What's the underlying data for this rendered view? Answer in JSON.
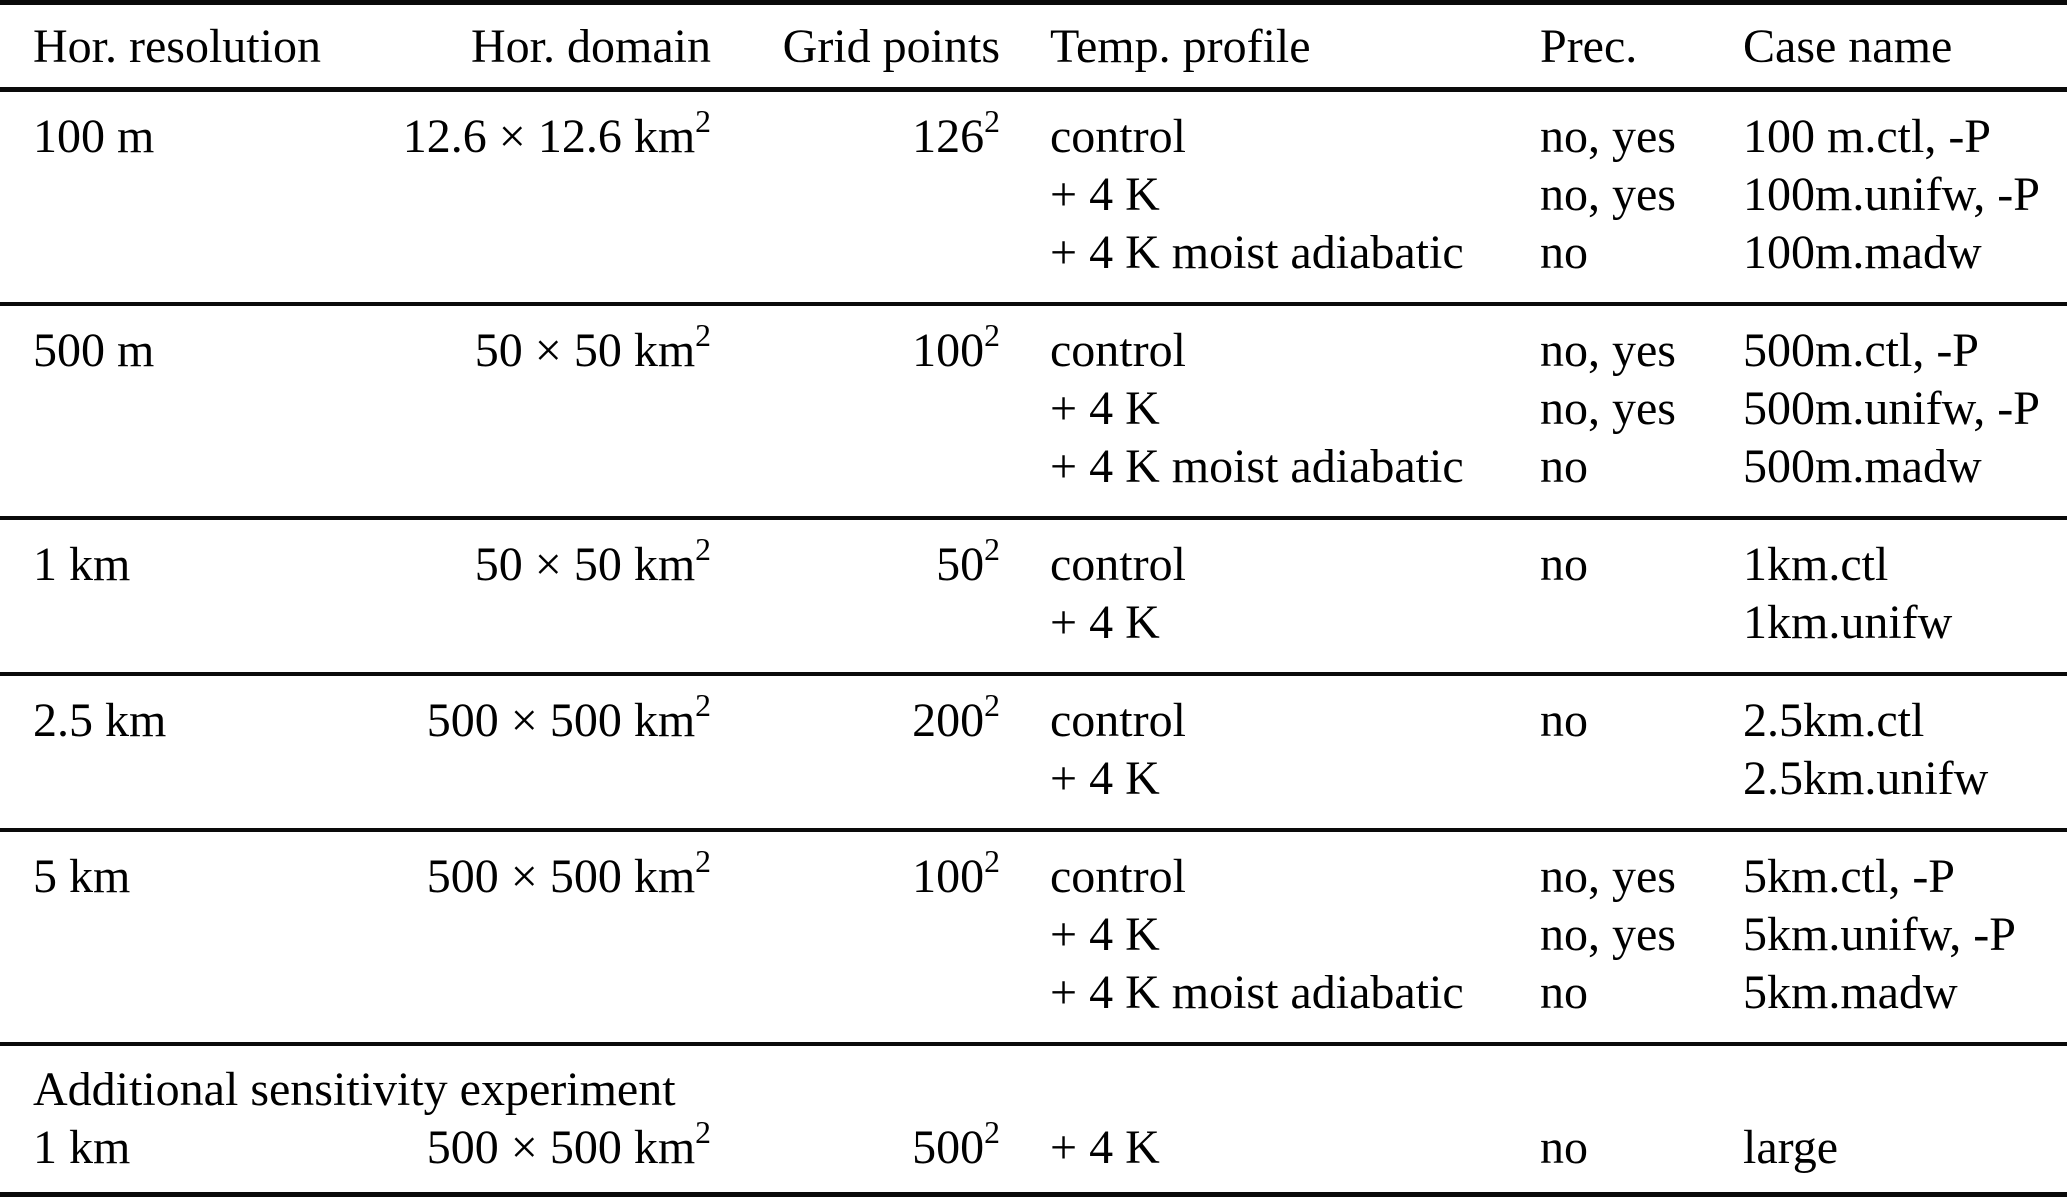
{
  "table": {
    "headers": {
      "resolution": "Hor. resolution",
      "domain": "Hor. domain",
      "grid": "Grid points",
      "profile": "Temp. profile",
      "prec": "Prec.",
      "case_name": "Case name"
    },
    "groups": [
      {
        "resolution": "100 m",
        "domain_base": "12.6 × 12.6 km",
        "domain_sup": "2",
        "grid_base": "126",
        "grid_sup": "2",
        "rows": [
          {
            "profile": "control",
            "prec": "no, yes",
            "case_name": "100 m.ctl, -P"
          },
          {
            "profile": "+ 4 K",
            "prec": "no, yes",
            "case_name": "100m.unifw, -P"
          },
          {
            "profile": "+ 4 K moist adiabatic",
            "prec": "no",
            "case_name": "100m.madw"
          }
        ]
      },
      {
        "resolution": "500 m",
        "domain_base": "50 × 50 km",
        "domain_sup": "2",
        "grid_base": "100",
        "grid_sup": "2",
        "rows": [
          {
            "profile": "control",
            "prec": "no, yes",
            "case_name": "500m.ctl, -P"
          },
          {
            "profile": "+ 4 K",
            "prec": "no, yes",
            "case_name": "500m.unifw, -P"
          },
          {
            "profile": "+ 4 K moist adiabatic",
            "prec": "no",
            "case_name": "500m.madw"
          }
        ]
      },
      {
        "resolution": "1 km",
        "domain_base": "50 × 50 km",
        "domain_sup": "2",
        "grid_base": "50",
        "grid_sup": "2",
        "rows": [
          {
            "profile": "control",
            "prec": "no",
            "case_name": "1km.ctl"
          },
          {
            "profile": "+ 4 K",
            "prec": "",
            "case_name": "1km.unifw"
          }
        ]
      },
      {
        "resolution": "2.5 km",
        "domain_base": "500 × 500 km",
        "domain_sup": "2",
        "grid_base": "200",
        "grid_sup": "2",
        "rows": [
          {
            "profile": "control",
            "prec": "no",
            "case_name": "2.5km.ctl"
          },
          {
            "profile": "+ 4 K",
            "prec": "",
            "case_name": "2.5km.unifw"
          }
        ]
      },
      {
        "resolution": "5 km",
        "domain_base": "500 × 500 km",
        "domain_sup": "2",
        "grid_base": "100",
        "grid_sup": "2",
        "rows": [
          {
            "profile": "control",
            "prec": "no, yes",
            "case_name": "5km.ctl, -P"
          },
          {
            "profile": "+ 4 K",
            "prec": "no, yes",
            "case_name": "5km.unifw, -P"
          },
          {
            "profile": "+ 4 K moist adiabatic",
            "prec": "no",
            "case_name": "5km.madw"
          }
        ]
      }
    ],
    "sensitivity": {
      "label": "Additional sensitivity experiment",
      "group": {
        "resolution": "1 km",
        "domain_base": "500 × 500 km",
        "domain_sup": "2",
        "grid_base": "500",
        "grid_sup": "2",
        "rows": [
          {
            "profile": "+ 4 K",
            "prec": "no",
            "case_name": "large"
          }
        ]
      }
    }
  }
}
